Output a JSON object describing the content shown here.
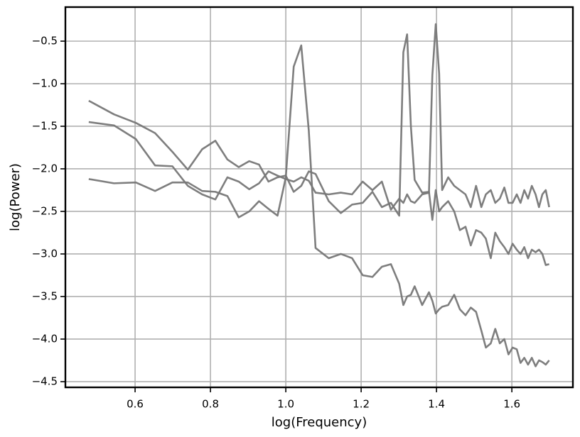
{
  "chart_data": {
    "type": "line",
    "xlabel": "log(Frequency)",
    "ylabel": "log(Power)",
    "grid": true,
    "xlim": [
      0.415,
      1.762
    ],
    "ylim": [
      -4.567,
      -0.1
    ],
    "xticks": [
      0.6,
      0.8,
      {
        "value": 1.0,
        "label": "1.0"
      },
      1.2,
      1.4,
      1.6
    ],
    "yticks": [
      {
        "value": -0.5,
        "label": "−0.5"
      },
      {
        "value": -1.0,
        "label": "−1.0"
      },
      {
        "value": -1.5,
        "label": "−1.5"
      },
      {
        "value": -2.0,
        "label": "−2.0"
      },
      {
        "value": -2.5,
        "label": "−2.5"
      },
      {
        "value": -3.0,
        "label": "−3.0"
      },
      {
        "value": -3.5,
        "label": "−3.5"
      },
      {
        "value": -4.0,
        "label": "−4.0"
      },
      {
        "value": -4.5,
        "label": "−4.5"
      }
    ],
    "x": [
      0.477,
      0.544,
      0.602,
      0.653,
      0.699,
      0.74,
      0.778,
      0.813,
      0.845,
      0.875,
      0.903,
      0.929,
      0.954,
      0.978,
      1.0,
      1.021,
      1.041,
      1.061,
      1.079,
      1.114,
      1.146,
      1.176,
      1.204,
      1.23,
      1.255,
      1.279,
      1.301,
      1.312,
      1.322,
      1.332,
      1.342,
      1.362,
      1.38,
      1.389,
      1.398,
      1.407,
      1.415,
      1.431,
      1.447,
      1.462,
      1.477,
      1.491,
      1.505,
      1.519,
      1.531,
      1.544,
      1.556,
      1.568,
      1.58,
      1.591,
      1.602,
      1.613,
      1.623,
      1.633,
      1.643,
      1.653,
      1.663,
      1.672,
      1.681,
      1.69,
      1.699
    ],
    "series": [
      {
        "color": "#777777",
        "values": [
          -1.2,
          -1.36,
          -1.46,
          -1.58,
          -1.8,
          -2.01,
          -1.77,
          -1.67,
          -1.89,
          -1.98,
          -1.91,
          -1.95,
          -2.15,
          -2.1,
          -2.08,
          -2.27,
          -2.2,
          -2.03,
          -2.06,
          -2.38,
          -2.52,
          -2.42,
          -2.4,
          -2.27,
          -2.45,
          -2.4,
          -2.55,
          -0.63,
          -0.42,
          -1.5,
          -2.13,
          -2.28,
          -2.27,
          -2.6,
          -2.25,
          -2.5,
          -2.45,
          -2.38,
          -2.5,
          -2.72,
          -2.68,
          -2.9,
          -2.72,
          -2.75,
          -2.82,
          -3.05,
          -2.75,
          -2.85,
          -2.92,
          -3.0,
          -2.88,
          -2.95,
          -3.0,
          -2.92,
          -3.05,
          -2.95,
          -2.98,
          -2.95,
          -3.0,
          -3.13,
          -3.12
        ]
      },
      {
        "color": "#777777",
        "values": [
          -1.45,
          -1.49,
          -1.65,
          -1.96,
          -1.97,
          -2.2,
          -2.3,
          -2.36,
          -2.1,
          -2.15,
          -2.24,
          -2.17,
          -2.03,
          -2.08,
          -2.12,
          -2.15,
          -2.1,
          -2.14,
          -2.28,
          -2.3,
          -2.28,
          -2.3,
          -2.15,
          -2.25,
          -2.15,
          -2.48,
          -2.35,
          -2.4,
          -2.3,
          -2.38,
          -2.4,
          -2.3,
          -2.28,
          -0.9,
          -0.3,
          -0.88,
          -2.25,
          -2.1,
          -2.2,
          -2.25,
          -2.3,
          -2.45,
          -2.2,
          -2.45,
          -2.3,
          -2.25,
          -2.4,
          -2.35,
          -2.22,
          -2.4,
          -2.4,
          -2.3,
          -2.4,
          -2.25,
          -2.35,
          -2.2,
          -2.3,
          -2.45,
          -2.3,
          -2.25,
          -2.45
        ]
      },
      {
        "color": "#777777",
        "values": [
          -2.12,
          -2.17,
          -2.16,
          -2.26,
          -2.16,
          -2.16,
          -2.26,
          -2.27,
          -2.32,
          -2.57,
          -2.5,
          -2.38,
          -2.47,
          -2.55,
          -2.1,
          -0.8,
          -0.55,
          -1.55,
          -2.93,
          -3.05,
          -3.0,
          -3.05,
          -3.25,
          -3.27,
          -3.15,
          -3.12,
          -3.35,
          -3.6,
          -3.5,
          -3.48,
          -3.38,
          -3.6,
          -3.45,
          -3.55,
          -3.7,
          -3.65,
          -3.62,
          -3.6,
          -3.48,
          -3.65,
          -3.72,
          -3.63,
          -3.68,
          -3.9,
          -4.1,
          -4.05,
          -3.88,
          -4.05,
          -4.0,
          -4.18,
          -4.1,
          -4.12,
          -4.28,
          -4.22,
          -4.3,
          -4.22,
          -4.32,
          -4.25,
          -4.27,
          -4.3,
          -4.25
        ]
      }
    ]
  }
}
